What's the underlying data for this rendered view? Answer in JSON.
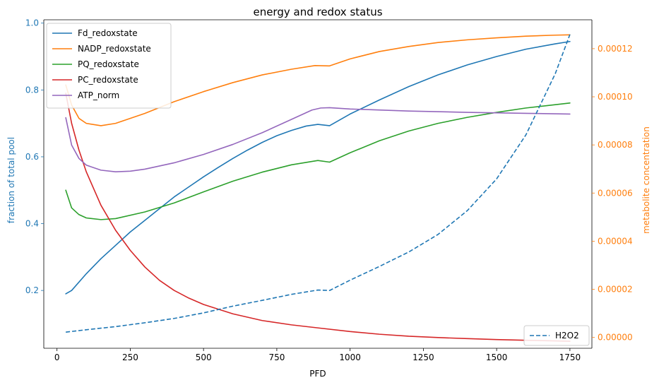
{
  "chart_data": {
    "type": "line",
    "title": "energy and redox status",
    "xlabel": "PFD",
    "ylabel_left": "fraction of total pool",
    "ylabel_right": "metabolite concentration",
    "xlim": [
      -45,
      1825
    ],
    "ylim_left": [
      0.027,
      1.01
    ],
    "ylim_right": [
      -4.5e-06,
      0.000132
    ],
    "x_ticks": [
      0,
      250,
      500,
      750,
      1000,
      1250,
      1500,
      1750
    ],
    "y_left_ticks": [
      0.2,
      0.4,
      0.6,
      0.8,
      1.0
    ],
    "y_left_tick_labels": [
      "0.2",
      "0.4",
      "0.6",
      "0.8",
      "1.0"
    ],
    "y_right_ticks": [
      0,
      2e-05,
      4e-05,
      6e-05,
      8e-05,
      0.0001,
      0.00012
    ],
    "y_right_tick_labels": [
      "0.00000",
      "0.00002",
      "0.00004",
      "0.00006",
      "0.00008",
      "0.00010",
      "0.00012"
    ],
    "left_axis_color": "#1f77b4",
    "right_axis_color": "#ff7f0e",
    "grid": false,
    "legend_left_position": "upper-left",
    "legend_right_position": "lower-right",
    "series_left": [
      {
        "name": "Fd_redoxstate",
        "color": "#1f77b4",
        "x": [
          30,
          50,
          100,
          150,
          200,
          250,
          300,
          350,
          400,
          450,
          500,
          550,
          600,
          650,
          700,
          750,
          800,
          850,
          890,
          930,
          1000,
          1100,
          1200,
          1300,
          1400,
          1500,
          1600,
          1700,
          1750
        ],
        "y": [
          0.19,
          0.2,
          0.25,
          0.295,
          0.335,
          0.375,
          0.41,
          0.445,
          0.48,
          0.51,
          0.54,
          0.568,
          0.595,
          0.62,
          0.643,
          0.663,
          0.679,
          0.692,
          0.697,
          0.693,
          0.728,
          0.77,
          0.81,
          0.845,
          0.875,
          0.9,
          0.922,
          0.938,
          0.945
        ]
      },
      {
        "name": "NADP_redoxstate",
        "color": "#ff7f0e",
        "x": [
          30,
          50,
          75,
          100,
          150,
          200,
          300,
          400,
          500,
          600,
          700,
          800,
          880,
          930,
          1000,
          1100,
          1200,
          1300,
          1400,
          1500,
          1600,
          1700,
          1750
        ],
        "y": [
          0.815,
          0.755,
          0.715,
          0.7,
          0.693,
          0.7,
          0.73,
          0.765,
          0.795,
          0.822,
          0.845,
          0.862,
          0.873,
          0.872,
          0.893,
          0.915,
          0.93,
          0.942,
          0.95,
          0.956,
          0.961,
          0.964,
          0.965
        ]
      },
      {
        "name": "PQ_redoxstate",
        "color": "#2ca02c",
        "x": [
          30,
          50,
          75,
          100,
          150,
          200,
          300,
          400,
          500,
          600,
          700,
          800,
          890,
          930,
          1000,
          1100,
          1200,
          1300,
          1400,
          1500,
          1600,
          1700,
          1750
        ],
        "y": [
          0.5,
          0.447,
          0.427,
          0.417,
          0.412,
          0.415,
          0.435,
          0.462,
          0.495,
          0.527,
          0.554,
          0.576,
          0.589,
          0.584,
          0.612,
          0.648,
          0.677,
          0.7,
          0.718,
          0.733,
          0.746,
          0.756,
          0.761
        ]
      },
      {
        "name": "PC_redoxstate",
        "color": "#d62728",
        "x": [
          30,
          50,
          75,
          100,
          150,
          200,
          250,
          300,
          350,
          400,
          450,
          500,
          600,
          700,
          800,
          900,
          1000,
          1100,
          1200,
          1300,
          1400,
          1500,
          1600,
          1700,
          1750
        ],
        "y": [
          0.79,
          0.7,
          0.62,
          0.555,
          0.455,
          0.38,
          0.32,
          0.27,
          0.23,
          0.2,
          0.177,
          0.158,
          0.13,
          0.11,
          0.097,
          0.087,
          0.077,
          0.069,
          0.063,
          0.059,
          0.056,
          0.053,
          0.051,
          0.049,
          0.048
        ]
      },
      {
        "name": "ATP_norm",
        "color": "#9467bd",
        "x": [
          30,
          50,
          75,
          100,
          150,
          200,
          250,
          300,
          400,
          500,
          600,
          700,
          800,
          870,
          900,
          930,
          1000,
          1200,
          1400,
          1600,
          1750
        ],
        "y": [
          0.717,
          0.635,
          0.595,
          0.575,
          0.56,
          0.555,
          0.557,
          0.563,
          0.582,
          0.607,
          0.637,
          0.672,
          0.712,
          0.74,
          0.746,
          0.747,
          0.743,
          0.737,
          0.733,
          0.73,
          0.728
        ]
      }
    ],
    "series_right": [
      {
        "name": "H2O2",
        "color": "#1f77b4",
        "dashed": true,
        "x": [
          30,
          100,
          200,
          300,
          400,
          500,
          600,
          700,
          800,
          890,
          930,
          1000,
          1100,
          1200,
          1300,
          1400,
          1500,
          1600,
          1700,
          1750
        ],
        "y": [
          2.2e-06,
          3.2e-06,
          4.5e-06,
          6.1e-06,
          7.9e-06,
          1.02e-05,
          1.3e-05,
          1.54e-05,
          1.79e-05,
          1.97e-05,
          1.95e-05,
          2.38e-05,
          2.95e-05,
          3.55e-05,
          4.28e-05,
          5.27e-05,
          6.59e-05,
          8.42e-05,
          0.0001096,
          0.0001259
        ]
      }
    ]
  }
}
